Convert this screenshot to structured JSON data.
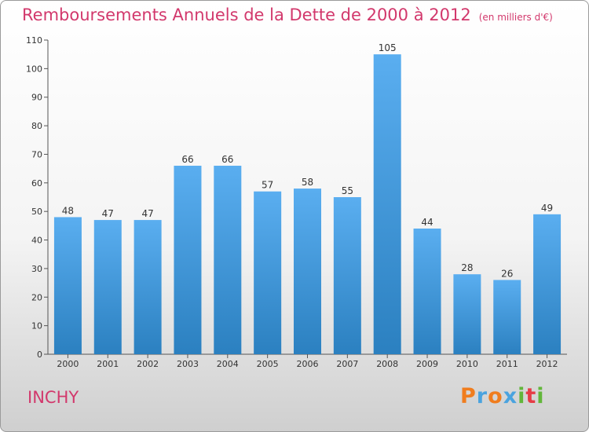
{
  "title": "Remboursements Annuels de la Dette de 2000 à 2012",
  "unit": "(en milliers d'€)",
  "town": "INCHY",
  "logo": {
    "text": "Proxiti",
    "letter_colors": [
      "#f07d1e",
      "#4aa3df",
      "#f07d1e",
      "#4aa3df",
      "#62b63a",
      "#e63c46",
      "#62b63a"
    ]
  },
  "colors": {
    "title": "#d2386c",
    "bar_top": "#5aaef0",
    "bar_bottom": "#2b80c0"
  },
  "chart_data": {
    "type": "bar",
    "categories": [
      "2000",
      "2001",
      "2002",
      "2003",
      "2004",
      "2005",
      "2006",
      "2007",
      "2008",
      "2009",
      "2010",
      "2011",
      "2012"
    ],
    "values": [
      48,
      47,
      47,
      66,
      66,
      57,
      58,
      55,
      105,
      44,
      28,
      26,
      49
    ],
    "ylim": [
      0,
      110
    ],
    "yticks": [
      0,
      10,
      20,
      30,
      40,
      50,
      60,
      70,
      80,
      90,
      100,
      110
    ],
    "grid": false,
    "data_labels": true
  }
}
